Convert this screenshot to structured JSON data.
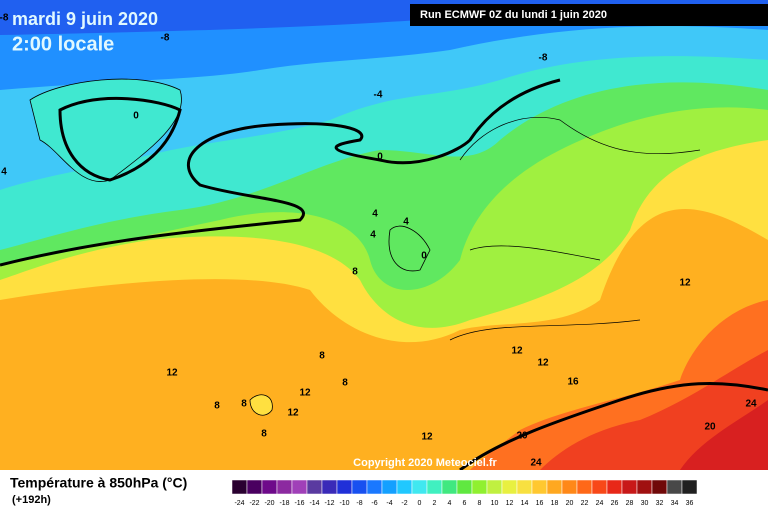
{
  "header": {
    "date": "mardi 9 juin 2020",
    "time": "2:00 locale",
    "run": "Run ECMWF 0Z du lundi 1 juin 2020",
    "copyright": "Copyright 2020 Meteociel.fr"
  },
  "legend": {
    "title": "Température à 850hPa (°C)",
    "lead": "(+192h)",
    "values": [
      -24,
      -22,
      -20,
      -18,
      -16,
      -14,
      -12,
      -10,
      -8,
      -6,
      -4,
      -2,
      0,
      2,
      4,
      6,
      8,
      10,
      12,
      14,
      16,
      18,
      20,
      22,
      24,
      26,
      28,
      30,
      32,
      34,
      36
    ],
    "colors": [
      "#2a0030",
      "#4a0060",
      "#6e0a8a",
      "#8c2aa0",
      "#a040b8",
      "#5a3aa0",
      "#3a2ab8",
      "#2030d8",
      "#1850f0",
      "#1a78ff",
      "#14a0ff",
      "#20c8ff",
      "#40e8f0",
      "#40f0c0",
      "#40e880",
      "#60e840",
      "#90f030",
      "#c0f040",
      "#e8f040",
      "#f8e040",
      "#ffc830",
      "#ffa820",
      "#ff8818",
      "#ff6818",
      "#f84818",
      "#e82818",
      "#c81818",
      "#a01010",
      "#700808",
      "#484848",
      "#202020"
    ]
  },
  "contour_labels": [
    -8,
    -8,
    -8,
    -4,
    0,
    0,
    4,
    4,
    4,
    4,
    0,
    8,
    12,
    8,
    12,
    12,
    8,
    12,
    16,
    12,
    8,
    8,
    12,
    8,
    12,
    20,
    24,
    20,
    24
  ]
}
